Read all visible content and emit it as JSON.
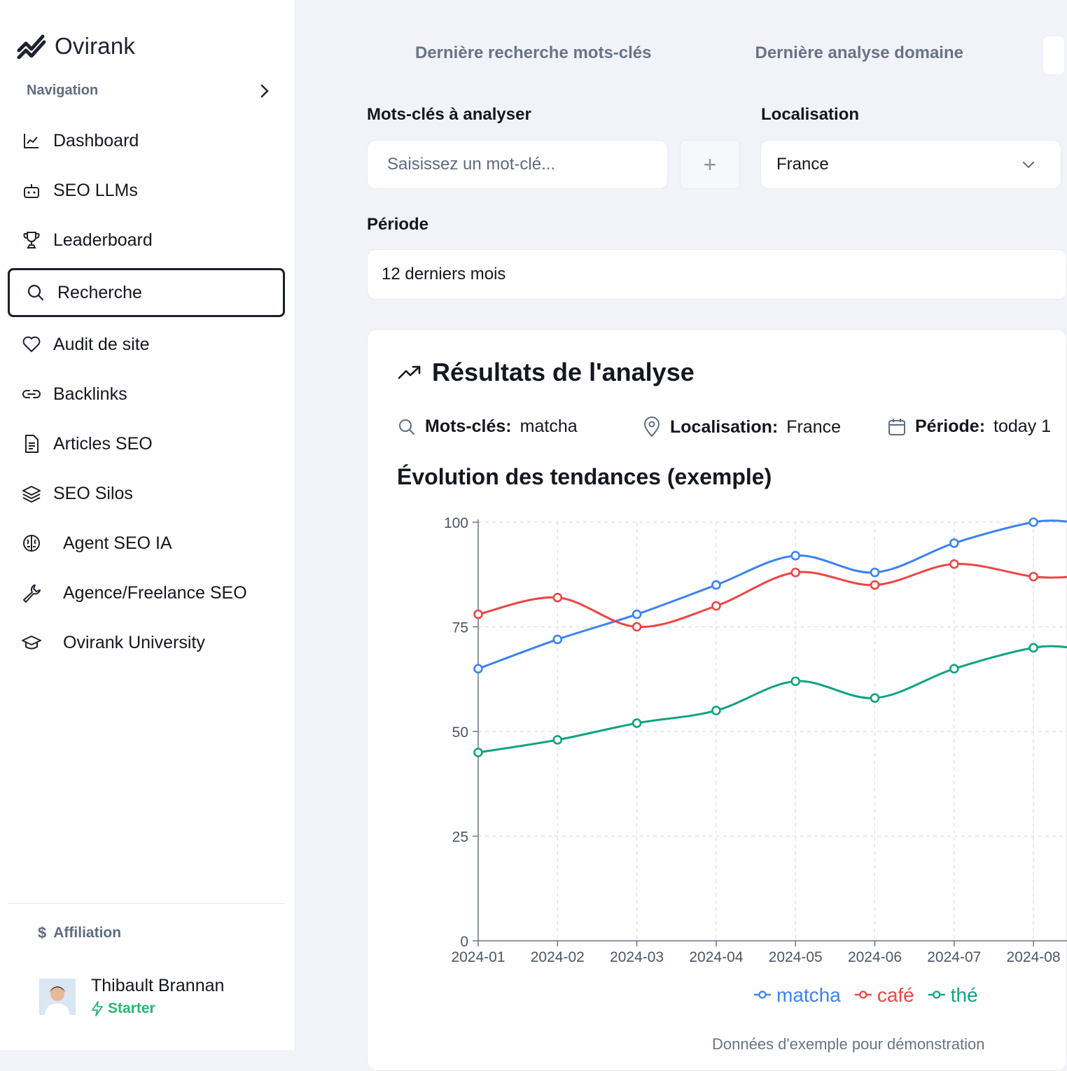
{
  "app": {
    "name": "Ovirank"
  },
  "sidebar": {
    "section_label": "Navigation",
    "items": [
      {
        "label": "Dashboard",
        "icon": "line-chart-icon"
      },
      {
        "label": "SEO LLMs",
        "icon": "bot-icon"
      },
      {
        "label": "Leaderboard",
        "icon": "trophy-icon"
      },
      {
        "label": "Recherche",
        "icon": "search-icon",
        "active": true
      },
      {
        "label": "Audit de site",
        "icon": "heart-icon"
      },
      {
        "label": "Backlinks",
        "icon": "link-icon"
      },
      {
        "label": "Articles SEO",
        "icon": "document-icon"
      },
      {
        "label": "SEO Silos",
        "icon": "layers-icon"
      },
      {
        "label": "Agent SEO IA",
        "icon": "brain-icon"
      },
      {
        "label": "Agence/Freelance SEO",
        "icon": "wrench-icon"
      },
      {
        "label": "Ovirank University",
        "icon": "graduation-cap-icon"
      }
    ],
    "affiliation_label": "Affiliation",
    "user": {
      "name": "Thibault Brannan",
      "plan": "Starter"
    }
  },
  "tabs": [
    "Dernière recherche mots-clés",
    "Dernière analyse domaine"
  ],
  "form": {
    "keywords_label": "Mots-clés à analyser",
    "keywords_placeholder": "Saisissez un mot-clé...",
    "add_symbol": "+",
    "location_label": "Localisation",
    "location_value": "France",
    "period_label": "Période",
    "period_value": "12 derniers mois"
  },
  "results": {
    "title": "Résultats de l'analyse",
    "keywords_key": "Mots-clés:",
    "keywords_val": "matcha",
    "location_key": "Localisation:",
    "location_val": "France",
    "period_key": "Période:",
    "period_val": "today 1",
    "chart_title": "Évolution des tendances (exemple)",
    "footnote": "Données d'exemple pour démonstration"
  },
  "colors": {
    "matcha": "#3b82f6",
    "cafe": "#ef4444",
    "the": "#10a37f",
    "plan": "#2bb673"
  },
  "chart_data": {
    "type": "line",
    "title": "Évolution des tendances (exemple)",
    "x": [
      "2024-01",
      "2024-02",
      "2024-03",
      "2024-04",
      "2024-05",
      "2024-06",
      "2024-07",
      "2024-08"
    ],
    "ylim": [
      0,
      100
    ],
    "yticks": [
      0,
      25,
      50,
      75,
      100
    ],
    "grid": true,
    "legend": "bottom",
    "series": [
      {
        "name": "matcha",
        "color": "#3b82f6",
        "values": [
          65,
          72,
          78,
          85,
          92,
          88,
          95,
          100
        ]
      },
      {
        "name": "café",
        "color": "#ef4444",
        "values": [
          78,
          82,
          75,
          80,
          88,
          85,
          90,
          87
        ]
      },
      {
        "name": "thé",
        "color": "#10a37f",
        "values": [
          45,
          48,
          52,
          55,
          62,
          58,
          65,
          70
        ]
      }
    ]
  }
}
